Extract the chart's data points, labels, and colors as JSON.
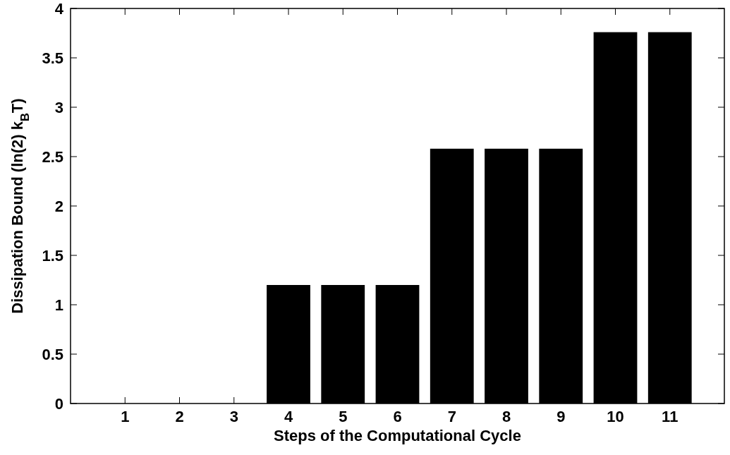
{
  "chart_data": {
    "type": "bar",
    "xlabel": "Steps of the Computational Cycle",
    "ylabel": "Dissipation Bound (ln(2) k$_{B}$T)",
    "x": [
      1,
      2,
      3,
      4,
      5,
      6,
      7,
      8,
      9,
      10,
      11
    ],
    "values": [
      0,
      0,
      0,
      1.2,
      1.2,
      1.2,
      2.58,
      2.58,
      2.58,
      3.76,
      3.76
    ],
    "color": "#000000",
    "xlim": [
      0,
      12
    ],
    "xticks": [
      1,
      2,
      3,
      4,
      5,
      6,
      7,
      8,
      9,
      10,
      11
    ],
    "ylim": [
      0,
      4
    ],
    "yticks": [
      0,
      0.5,
      1,
      1.5,
      2,
      2.5,
      3,
      3.5,
      4
    ],
    "grid": false
  }
}
